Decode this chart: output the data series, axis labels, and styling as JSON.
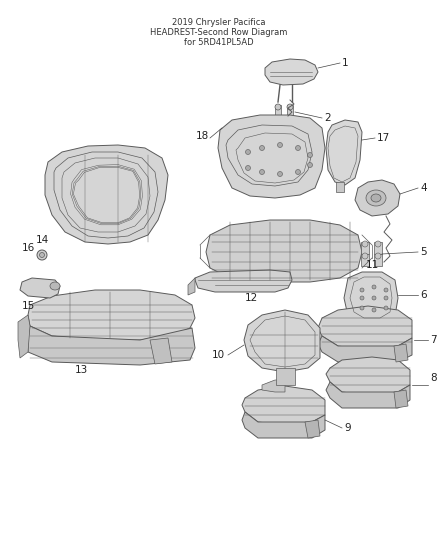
{
  "title": "2019 Chrysler Pacifica\nHEADREST-Second Row Diagram\nfor 5RD41PL5AD",
  "bg_color": "#ffffff",
  "lc": "#5a5a5a",
  "fc_light": "#e0e0e0",
  "fc_mid": "#cccccc",
  "fc_dark": "#b8b8b8",
  "fig_width": 4.38,
  "fig_height": 5.33,
  "dpi": 100
}
